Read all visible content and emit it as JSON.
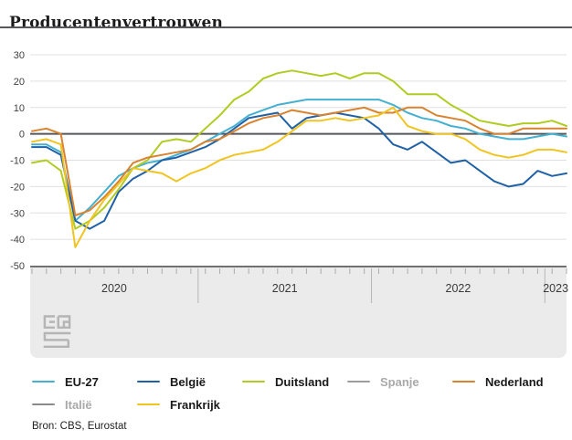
{
  "title": "Producentenvertrouwen",
  "source": "Bron: CBS, Eurostat",
  "chart_data": {
    "type": "line",
    "title": "Producentenvertrouwen",
    "x_unit": "month",
    "x_start": "2020-01",
    "x_end": "2023-02",
    "year_labels": [
      "2020",
      "2021",
      "2022",
      "2023"
    ],
    "months_per_year": [
      12,
      12,
      12,
      2
    ],
    "ylim": [
      -50,
      30
    ],
    "y_tick_labels": [
      30,
      20,
      10,
      0,
      -10,
      -20,
      -30,
      -40,
      -50
    ],
    "grid": true,
    "zero_line": true,
    "legend_position": "bottom",
    "series": [
      {
        "name": "EU-27",
        "color": "#45b0d0",
        "values": [
          -4,
          -4,
          -7,
          -33,
          -28,
          -22,
          -16,
          -13,
          -11,
          -10,
          -8,
          -6,
          -3,
          0,
          3,
          7,
          9,
          11,
          12,
          13,
          13,
          13,
          13,
          13,
          13,
          11,
          8,
          6,
          5,
          3,
          2,
          0,
          -1,
          -2,
          -2,
          -1,
          0,
          -1
        ]
      },
      {
        "name": "België",
        "color": "#2061a5",
        "values": [
          -5,
          -5,
          -8,
          -33,
          -36,
          -33,
          -22,
          -17,
          -14,
          -10,
          -9,
          -7,
          -5,
          -2,
          2,
          6,
          7,
          8,
          2,
          6,
          7,
          8,
          7,
          6,
          2,
          -4,
          -6,
          -3,
          -7,
          -11,
          -10,
          -14,
          -18,
          -20,
          -19,
          -14,
          -16,
          -15
        ]
      },
      {
        "name": "Duitsland",
        "color": "#b2cb22",
        "values": [
          -11,
          -10,
          -14,
          -36,
          -33,
          -28,
          -21,
          -13,
          -10,
          -3,
          -2,
          -3,
          2,
          7,
          13,
          16,
          21,
          23,
          24,
          23,
          22,
          23,
          21,
          23,
          23,
          20,
          15,
          15,
          15,
          11,
          8,
          5,
          4,
          3,
          4,
          4,
          5,
          3
        ]
      },
      {
        "name": "Nederland",
        "color": "#d9822f",
        "values": [
          1,
          2,
          0,
          -31,
          -29,
          -24,
          -18,
          -11,
          -9,
          -8,
          -7,
          -6,
          -3,
          -2,
          1,
          4,
          6,
          7,
          9,
          8,
          7,
          8,
          9,
          10,
          8,
          8,
          10,
          10,
          7,
          6,
          5,
          2,
          0,
          0,
          2,
          2,
          2,
          2
        ]
      },
      {
        "name": "Frankrijk",
        "color": "#f0c421",
        "values": [
          -3,
          -2,
          -4,
          -43,
          -33,
          -25,
          -19,
          -13,
          -14,
          -15,
          -18,
          -15,
          -13,
          -10,
          -8,
          -7,
          -6,
          -3,
          1,
          5,
          5,
          6,
          5,
          6,
          7,
          10,
          3,
          1,
          0,
          0,
          -2,
          -6,
          -8,
          -9,
          -8,
          -6,
          -6,
          -7
        ]
      }
    ],
    "legend": [
      {
        "label": "EU-27",
        "color": "#45b0d0",
        "disabled": false
      },
      {
        "label": "België",
        "color": "#2061a5",
        "disabled": false
      },
      {
        "label": "Duitsland",
        "color": "#b2cb22",
        "disabled": false
      },
      {
        "label": "Spanje",
        "color": "#9d9d9d",
        "disabled": true
      },
      {
        "label": "Nederland",
        "color": "#d9822f",
        "disabled": false
      },
      {
        "label": "Italië",
        "color": "#8a8a8a",
        "disabled": true
      },
      {
        "label": "Frankrijk",
        "color": "#f0c421",
        "disabled": false
      }
    ]
  }
}
